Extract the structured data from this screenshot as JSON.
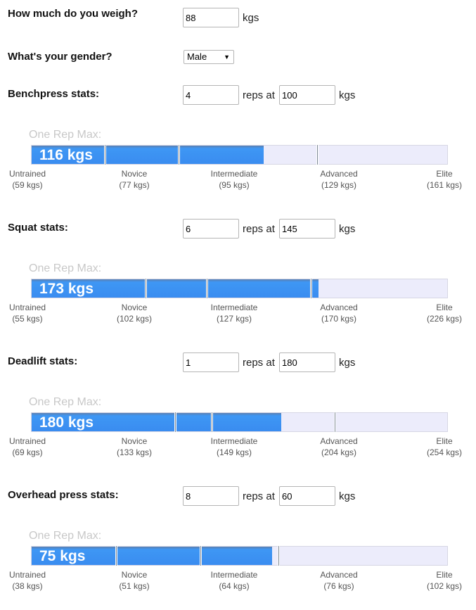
{
  "weight": {
    "label": "How much do you weigh?",
    "value": "88",
    "unit": "kgs"
  },
  "gender": {
    "label": "What's your gender?",
    "value": "Male"
  },
  "reps_word": "reps at",
  "unit": "kgs",
  "one_rep_max_label": "One Rep Max:",
  "lifts": [
    {
      "label": "Benchpress stats:",
      "reps": "4",
      "weight": "100",
      "orm_text": "116 kgs",
      "orm": 116,
      "levels": [
        {
          "name": "Untrained",
          "value": "(59 kgs)",
          "kg": 59
        },
        {
          "name": "Novice",
          "value": "(77 kgs)",
          "kg": 77
        },
        {
          "name": "Intermediate",
          "value": "(95 kgs)",
          "kg": 95
        },
        {
          "name": "Advanced",
          "value": "(129 kgs)",
          "kg": 129
        },
        {
          "name": "Elite",
          "value": "(161 kgs)",
          "kg": 161
        }
      ]
    },
    {
      "label": "Squat stats:",
      "reps": "6",
      "weight": "145",
      "orm_text": "173 kgs",
      "orm": 173,
      "levels": [
        {
          "name": "Untrained",
          "value": "(55 kgs)",
          "kg": 55
        },
        {
          "name": "Novice",
          "value": "(102 kgs)",
          "kg": 102
        },
        {
          "name": "Intermediate",
          "value": "(127 kgs)",
          "kg": 127
        },
        {
          "name": "Advanced",
          "value": "(170 kgs)",
          "kg": 170
        },
        {
          "name": "Elite",
          "value": "(226 kgs)",
          "kg": 226
        }
      ]
    },
    {
      "label": "Deadlift stats:",
      "reps": "1",
      "weight": "180",
      "orm_text": "180 kgs",
      "orm": 180,
      "levels": [
        {
          "name": "Untrained",
          "value": "(69 kgs)",
          "kg": 69
        },
        {
          "name": "Novice",
          "value": "(133 kgs)",
          "kg": 133
        },
        {
          "name": "Intermediate",
          "value": "(149 kgs)",
          "kg": 149
        },
        {
          "name": "Advanced",
          "value": "(204 kgs)",
          "kg": 204
        },
        {
          "name": "Elite",
          "value": "(254 kgs)",
          "kg": 254
        }
      ]
    },
    {
      "label": "Overhead press stats:",
      "reps": "8",
      "weight": "60",
      "orm_text": "75 kgs",
      "orm": 75,
      "levels": [
        {
          "name": "Untrained",
          "value": "(38 kgs)",
          "kg": 38
        },
        {
          "name": "Novice",
          "value": "(51 kgs)",
          "kg": 51
        },
        {
          "name": "Intermediate",
          "value": "(64 kgs)",
          "kg": 64
        },
        {
          "name": "Advanced",
          "value": "(76 kgs)",
          "kg": 76
        },
        {
          "name": "Elite",
          "value": "(102 kgs)",
          "kg": 102
        }
      ]
    }
  ],
  "colors": {
    "bar_fill": "#3a8cf0",
    "bar_track": "#ececfb",
    "label_faint": "#c8c8c8"
  }
}
